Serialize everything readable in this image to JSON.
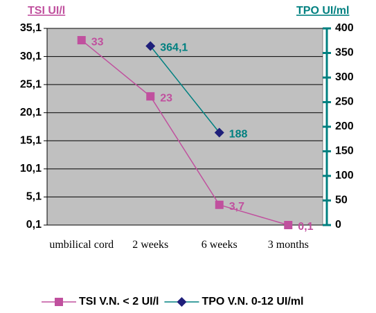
{
  "chart_data": {
    "type": "line",
    "y_label": "TSI UI/l",
    "y2_label": "TPO UI/ml",
    "categories": [
      "umbilical cord",
      "2 weeks",
      "6 weeks",
      "3 months"
    ],
    "series": [
      {
        "name": "TSI V.N. < 2 UI/l",
        "color": "#c0509e",
        "marker": "square",
        "values": [
          33,
          23,
          3.7,
          0.1
        ],
        "value_labels": [
          "33",
          "23",
          "3,7",
          "0,1"
        ]
      },
      {
        "name": "TPO V.N. 0-12 UI/ml",
        "color": "#008080",
        "marker_color": "#1f1f7a",
        "marker": "diamond",
        "axis": "y2",
        "values": [
          null,
          364.1,
          188,
          null
        ],
        "value_labels": [
          null,
          "364,1",
          "188",
          null
        ]
      }
    ],
    "ylim": [
      0.1,
      35.1
    ],
    "yticks": [
      {
        "value": 0.1,
        "label": "0,1"
      },
      {
        "value": 5.1,
        "label": "5,1"
      },
      {
        "value": 10.1,
        "label": "10,1"
      },
      {
        "value": 15.1,
        "label": "15,1"
      },
      {
        "value": 20.1,
        "label": "20,1"
      },
      {
        "value": 25.1,
        "label": "25,1"
      },
      {
        "value": 30.1,
        "label": "30,1"
      },
      {
        "value": 35.1,
        "label": "35,1"
      }
    ],
    "y2lim": [
      0,
      400
    ],
    "y2ticks": [
      0,
      50,
      100,
      150,
      200,
      250,
      300,
      350,
      400
    ],
    "grid": true,
    "plot_background": "#c0c0c0",
    "legend": "bottom"
  }
}
